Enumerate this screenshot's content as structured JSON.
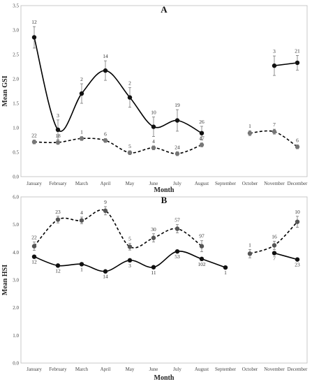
{
  "chart_data": [
    {
      "panel": "A",
      "type": "line",
      "title": "A",
      "xlabel": "Month",
      "ylabel": "Mean GSI",
      "categories": [
        "January",
        "February",
        "March",
        "April",
        "May",
        "June",
        "July",
        "August",
        "September",
        "October",
        "November",
        "December"
      ],
      "ylim": [
        0,
        3.5
      ],
      "yticks": [
        "0.0",
        "0.5",
        "1.0",
        "1.5",
        "2.0",
        "2.5",
        "3.0",
        "3.5"
      ],
      "grid": false,
      "series": [
        {
          "style": "solid",
          "marker_color": "#111111",
          "values": [
            2.85,
            0.96,
            1.7,
            2.17,
            1.62,
            1.02,
            1.15,
            0.89,
            null,
            null,
            2.27,
            2.33
          ],
          "errors": [
            0.22,
            0.2,
            0.2,
            0.2,
            0.2,
            0.2,
            0.22,
            0.14,
            null,
            null,
            0.2,
            0.15
          ],
          "n": [
            "12",
            "3",
            "2",
            "14",
            "2",
            "10",
            "19",
            "26",
            "",
            "",
            "3",
            "21"
          ]
        },
        {
          "style": "dashed",
          "marker_color": "#777777",
          "values": [
            0.71,
            0.7,
            0.78,
            0.74,
            0.49,
            0.59,
            0.47,
            0.65,
            null,
            0.89,
            0.92,
            0.61
          ],
          "errors": [
            0.04,
            0.04,
            0.04,
            0.04,
            0.04,
            0.04,
            0.04,
            0.04,
            null,
            0.05,
            0.05,
            0.04
          ],
          "n": [
            "22",
            "18",
            "1",
            "6",
            "5",
            "4",
            "24",
            "47",
            "",
            "1",
            "7",
            "6"
          ]
        }
      ]
    },
    {
      "panel": "B",
      "type": "line",
      "title": "B",
      "xlabel": "Month",
      "ylabel": "Mean HSI",
      "categories": [
        "January",
        "February",
        "March",
        "April",
        "May",
        "June",
        "July",
        "August",
        "September",
        "October",
        "November",
        "December"
      ],
      "ylim": [
        0,
        6
      ],
      "yticks": [
        "0.0",
        "1.0",
        "2.0",
        "3.0",
        "4.0",
        "5.0",
        "6.0"
      ],
      "grid": false,
      "series": [
        {
          "style": "dashed",
          "marker_color": "#555555",
          "values": [
            4.22,
            5.18,
            5.15,
            5.5,
            4.2,
            4.52,
            4.85,
            4.22,
            null,
            3.95,
            4.25,
            5.1
          ],
          "errors": [
            0.15,
            0.12,
            0.12,
            0.15,
            0.12,
            0.15,
            0.15,
            0.2,
            null,
            0.15,
            0.15,
            0.2
          ],
          "n": [
            "22",
            "23",
            "4",
            "9",
            "5",
            "30",
            "57",
            "97",
            "",
            "1",
            "16",
            "10"
          ]
        },
        {
          "style": "solid",
          "marker_color": "#111111",
          "values": [
            3.84,
            3.52,
            3.57,
            3.31,
            3.71,
            3.46,
            4.03,
            3.76,
            3.45,
            null,
            3.97,
            3.74
          ],
          "errors": [
            0.0,
            0.0,
            0.0,
            0.0,
            0.0,
            0.0,
            0.0,
            0.0,
            0.0,
            null,
            0.0,
            0.0
          ],
          "n": [
            "12",
            "12",
            "1",
            "14",
            "3",
            "11",
            "53",
            "102",
            "1",
            "",
            "7",
            "23"
          ]
        }
      ]
    }
  ]
}
